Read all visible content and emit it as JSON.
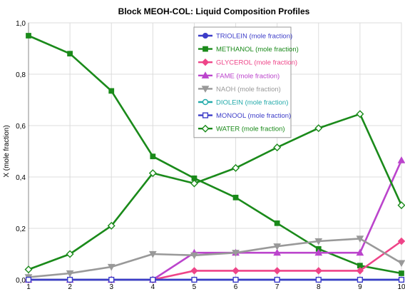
{
  "chart_data": {
    "type": "line",
    "title": "Block MEOH-COL: Liquid Composition Profiles",
    "xlabel": "",
    "ylabel": "X (mole fraction)",
    "xlim": [
      1,
      10
    ],
    "ylim": [
      0,
      1
    ],
    "x": [
      1,
      2,
      3,
      4,
      5,
      6,
      7,
      8,
      9,
      10
    ],
    "x_ticks": [
      "1",
      "2",
      "3",
      "4",
      "5",
      "6",
      "7",
      "8",
      "9",
      "10"
    ],
    "y_ticks": [
      "0,0",
      "0,2",
      "0,4",
      "0,6",
      "0,8",
      "1,0"
    ],
    "y_tick_values": [
      0,
      0.2,
      0.4,
      0.6,
      0.8,
      1.0
    ],
    "grid": true,
    "legend_position": "top-center",
    "series": [
      {
        "name": "TRIOLEIN (mole fraction)",
        "color": "#3c3cc8",
        "marker": "circle-filled",
        "values": [
          0,
          0,
          0,
          0,
          0,
          0,
          0,
          0,
          0,
          0
        ]
      },
      {
        "name": "METHANOL (mole fraction)",
        "color": "#1a8a1a",
        "marker": "square-filled",
        "values": [
          0.95,
          0.88,
          0.735,
          0.48,
          0.395,
          0.32,
          0.22,
          0.12,
          0.055,
          0.025
        ]
      },
      {
        "name": "GLYCEROL (mole fraction)",
        "color": "#ee4488",
        "marker": "diamond-filled",
        "values": [
          0,
          0,
          0,
          0,
          0.035,
          0.035,
          0.035,
          0.035,
          0.035,
          0.15
        ]
      },
      {
        "name": "FAME (mole fraction)",
        "color": "#bb44cc",
        "marker": "triangle-up-filled",
        "values": [
          0,
          0,
          0,
          0,
          0.105,
          0.105,
          0.105,
          0.105,
          0.105,
          0.465
        ]
      },
      {
        "name": "NAOH (mole fraction)",
        "color": "#999999",
        "marker": "triangle-down-filled",
        "values": [
          0.01,
          0.025,
          0.05,
          0.1,
          0.095,
          0.105,
          0.13,
          0.15,
          0.16,
          0.065
        ]
      },
      {
        "name": "DIOLEIN (mole fraction)",
        "color": "#22aaaa",
        "marker": "circle-open",
        "values": [
          0,
          0,
          0,
          0,
          0,
          0,
          0,
          0,
          0,
          0
        ]
      },
      {
        "name": "MONOOL (mole fraction)",
        "color": "#3c3cc8",
        "marker": "square-open",
        "values": [
          0,
          0,
          0,
          0,
          0,
          0,
          0,
          0,
          0,
          0
        ]
      },
      {
        "name": "WATER (mole fraction)",
        "color": "#1a8a1a",
        "marker": "diamond-open",
        "values": [
          0.04,
          0.1,
          0.21,
          0.415,
          0.375,
          0.435,
          0.515,
          0.59,
          0.645,
          0.29
        ]
      }
    ]
  }
}
